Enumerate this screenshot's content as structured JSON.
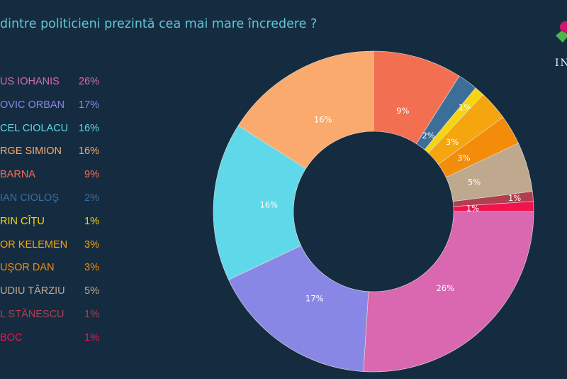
{
  "header": {
    "title": "dintre politicieni prezintă cea mai mare încredere ?"
  },
  "logo": {
    "text": "IN"
  },
  "chart_data": {
    "type": "pie",
    "style": "donut",
    "title": "dintre politicieni prezintă cea mai mare încredere ?",
    "legend_placement": "left",
    "slices": [
      {
        "label": "DAN BARNA",
        "legend_text": "BARNA",
        "value": 9,
        "color": "#f36f52"
      },
      {
        "label": "DACIAN CIOLOŞ",
        "legend_text": "IAN CIOLOŞ",
        "value": 2,
        "color": "#3b6e98"
      },
      {
        "label": "FLORIN CÎȚU",
        "legend_text": "RIN CÎȚU",
        "value": 1,
        "color": "#f5d511"
      },
      {
        "label": "KELEMEN",
        "legend_text": "OR KELEMEN",
        "value": 3,
        "color": "#f5a50e"
      },
      {
        "label": "NICUŞOR DAN",
        "legend_text": "UŞOR DAN",
        "value": 3,
        "color": "#f28c0a"
      },
      {
        "label": "CLAUDIU TÂRZIU",
        "legend_text": "UDIU TÂRZIU",
        "value": 5,
        "color": "#bea98f"
      },
      {
        "label": "STĂNESCU",
        "legend_text": "L STĂNESCU",
        "value": 1,
        "color": "#b03f50"
      },
      {
        "label": "BOC",
        "legend_text": "BOC",
        "value": 1,
        "color": "#f0134f"
      },
      {
        "label": "KLAUS IOHANIS",
        "legend_text": "US IOHANIS",
        "value": 26,
        "color": "#d968b0"
      },
      {
        "label": "LUDOVIC ORBAN",
        "legend_text": "OVIC ORBAN",
        "value": 17,
        "color": "#8987e6"
      },
      {
        "label": "MARCEL CIOLACU",
        "legend_text": "CEL CIOLACU",
        "value": 16,
        "color": "#5fd9e9"
      },
      {
        "label": "GEORGE SIMION",
        "legend_text": "RGE SIMION",
        "value": 16,
        "color": "#f9aa6c"
      }
    ],
    "legend_order": [
      8,
      9,
      10,
      11,
      0,
      1,
      2,
      3,
      4,
      5,
      6,
      7
    ],
    "unit": "%"
  }
}
